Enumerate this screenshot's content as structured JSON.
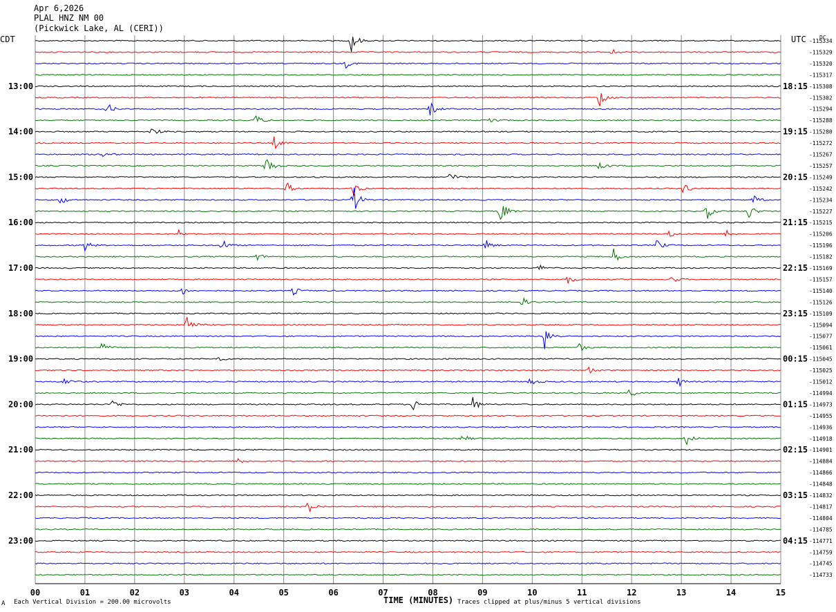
{
  "header": {
    "date": "Apr 6,2026",
    "station": "PLAL HNZ NM 00",
    "location": "(Pickwick Lake, AL (CERI))"
  },
  "left_tz": "CDT",
  "right_tz": "UTC",
  "dc_label": "DC",
  "footer": {
    "scale": "Each Vertical Division =  200.00 microvolts",
    "xlabel": "TIME (MINUTES)",
    "clip": "Traces clipped at plus/minus 5 vertical divisions",
    "corner": "A"
  },
  "colors": {
    "cycle": [
      "#000000",
      "#ff0000",
      "#0000ff",
      "#007700"
    ],
    "grid": "#888888"
  },
  "chart_data": {
    "type": "line",
    "title": "PLAL HNZ NM 00",
    "xlabel": "TIME (MINUTES)",
    "xlim": [
      0,
      15
    ],
    "x_ticks": [
      "00",
      "01",
      "02",
      "03",
      "04",
      "05",
      "06",
      "07",
      "08",
      "09",
      "10",
      "11",
      "12",
      "13",
      "14",
      "15"
    ],
    "left_time_labels": [
      "13:00",
      "14:00",
      "15:00",
      "16:00",
      "17:00",
      "18:00",
      "19:00",
      "20:00",
      "21:00",
      "22:00",
      "23:00"
    ],
    "right_time_labels": [
      "18:15",
      "19:15",
      "20:15",
      "21:15",
      "22:15",
      "23:15",
      "00:15",
      "01:15",
      "02:15",
      "03:15",
      "04:15"
    ],
    "dc_offsets": [
      -115334,
      -115329,
      -115320,
      -115317,
      -115308,
      -115302,
      -115294,
      -115288,
      -115280,
      -115272,
      -115267,
      -115257,
      -115249,
      -115242,
      -115234,
      -115227,
      -115215,
      -115206,
      -115196,
      -115182,
      -115169,
      -115157,
      -115140,
      -115126,
      -115109,
      -115094,
      -115077,
      -115061,
      -115045,
      -115025,
      -115012,
      -114994,
      -114973,
      -114955,
      -114936,
      -114918,
      -114901,
      -114884,
      -114866,
      -114848,
      -114832,
      -114817,
      -114804,
      -114785,
      -114771,
      -114759,
      -114745,
      -114733
    ],
    "events": [
      {
        "row": 0,
        "minute": 6.35,
        "amp": 22
      },
      {
        "row": 1,
        "minute": 11.6,
        "amp": 5
      },
      {
        "row": 2,
        "minute": 6.25,
        "amp": 6
      },
      {
        "row": 5,
        "minute": 11.35,
        "amp": 16
      },
      {
        "row": 6,
        "minute": 1.45,
        "amp": 9
      },
      {
        "row": 6,
        "minute": 7.95,
        "amp": 12
      },
      {
        "row": 7,
        "minute": 4.45,
        "amp": 9
      },
      {
        "row": 7,
        "minute": 9.15,
        "amp": 7
      },
      {
        "row": 8,
        "minute": 2.35,
        "amp": 8
      },
      {
        "row": 9,
        "minute": 4.8,
        "amp": 10
      },
      {
        "row": 10,
        "minute": 1.35,
        "amp": 8
      },
      {
        "row": 11,
        "minute": 4.65,
        "amp": 20
      },
      {
        "row": 11,
        "minute": 11.35,
        "amp": 10
      },
      {
        "row": 12,
        "minute": 8.35,
        "amp": 9
      },
      {
        "row": 13,
        "minute": 5.05,
        "amp": 10
      },
      {
        "row": 13,
        "minute": 6.4,
        "amp": 12
      },
      {
        "row": 13,
        "minute": 13.05,
        "amp": 9
      },
      {
        "row": 14,
        "minute": 0.5,
        "amp": 8
      },
      {
        "row": 14,
        "minute": 6.4,
        "amp": 22
      },
      {
        "row": 14,
        "minute": 14.45,
        "amp": 7
      },
      {
        "row": 15,
        "minute": 9.35,
        "amp": 22
      },
      {
        "row": 15,
        "minute": 13.5,
        "amp": 14
      },
      {
        "row": 15,
        "minute": 14.35,
        "amp": 12
      },
      {
        "row": 17,
        "minute": 2.9,
        "amp": 7
      },
      {
        "row": 17,
        "minute": 12.75,
        "amp": 7
      },
      {
        "row": 17,
        "minute": 13.9,
        "amp": 7
      },
      {
        "row": 18,
        "minute": 1.0,
        "amp": 8
      },
      {
        "row": 18,
        "minute": 3.75,
        "amp": 10
      },
      {
        "row": 18,
        "minute": 9.05,
        "amp": 9
      },
      {
        "row": 18,
        "minute": 12.5,
        "amp": 10
      },
      {
        "row": 19,
        "minute": 4.45,
        "amp": 7
      },
      {
        "row": 19,
        "minute": 11.6,
        "amp": 18
      },
      {
        "row": 20,
        "minute": 10.15,
        "amp": 6
      },
      {
        "row": 21,
        "minute": 10.7,
        "amp": 8
      },
      {
        "row": 21,
        "minute": 12.8,
        "amp": 7
      },
      {
        "row": 22,
        "minute": 2.95,
        "amp": 7
      },
      {
        "row": 22,
        "minute": 5.2,
        "amp": 6
      },
      {
        "row": 23,
        "minute": 9.8,
        "amp": 7
      },
      {
        "row": 25,
        "minute": 3.05,
        "amp": 16
      },
      {
        "row": 26,
        "minute": 10.25,
        "amp": 22
      },
      {
        "row": 27,
        "minute": 1.35,
        "amp": 8
      },
      {
        "row": 27,
        "minute": 10.95,
        "amp": 6
      },
      {
        "row": 28,
        "minute": 3.65,
        "amp": 5
      },
      {
        "row": 29,
        "minute": 11.15,
        "amp": 6
      },
      {
        "row": 30,
        "minute": 0.6,
        "amp": 8
      },
      {
        "row": 30,
        "minute": 9.95,
        "amp": 7
      },
      {
        "row": 30,
        "minute": 12.95,
        "amp": 7
      },
      {
        "row": 31,
        "minute": 11.95,
        "amp": 8
      },
      {
        "row": 32,
        "minute": 1.55,
        "amp": 9
      },
      {
        "row": 32,
        "minute": 7.6,
        "amp": 9
      },
      {
        "row": 32,
        "minute": 8.8,
        "amp": 12
      },
      {
        "row": 35,
        "minute": 8.6,
        "amp": 7
      },
      {
        "row": 35,
        "minute": 13.1,
        "amp": 9
      },
      {
        "row": 37,
        "minute": 4.1,
        "amp": 6
      },
      {
        "row": 41,
        "minute": 5.5,
        "amp": 10
      }
    ]
  }
}
